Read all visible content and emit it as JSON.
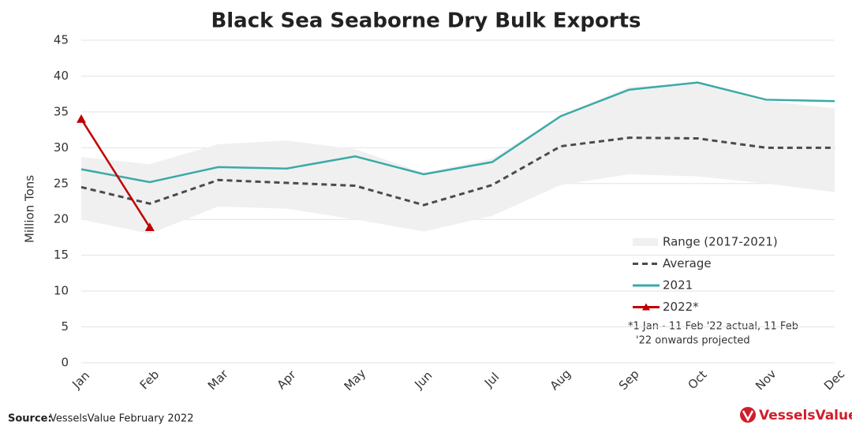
{
  "chart_data": {
    "type": "line",
    "title": "Black Sea Seaborne Dry Bulk Exports",
    "y_label": "Million Tons",
    "categories": [
      "Jan",
      "Feb",
      "Mar",
      "Apr",
      "May",
      "Jun",
      "Jul",
      "Aug",
      "Sep",
      "Oct",
      "Nov",
      "Dec"
    ],
    "range": {
      "name": "Range (2017-2021)",
      "color": "#f0f0f0",
      "low": [
        20,
        18,
        21.8,
        21.5,
        20,
        18.3,
        20.5,
        24.8,
        26.3,
        26,
        25,
        23.8
      ],
      "high": [
        28.7,
        27.7,
        30.5,
        31,
        29.8,
        26.5,
        28.5,
        34.5,
        38.5,
        39,
        36.5,
        35.5
      ]
    },
    "series": [
      {
        "name": "Average",
        "color": "#4a4a52",
        "dash": true,
        "values": [
          24.5,
          22.2,
          25.5,
          25.1,
          24.7,
          22,
          24.8,
          30.2,
          31.4,
          31.3,
          30,
          30
        ]
      },
      {
        "name": "2021",
        "color": "#3aaaa8",
        "values": [
          27,
          25.2,
          27.3,
          27.1,
          28.8,
          26.3,
          28,
          34.4,
          38.1,
          39.1,
          36.7,
          36.5
        ]
      },
      {
        "name": "2022*",
        "color": "#c00000",
        "marker": "triangle",
        "values": [
          34,
          18.9,
          null,
          null,
          null,
          null,
          null,
          null,
          null,
          null,
          null,
          null
        ]
      }
    ],
    "ylim": [
      0,
      45
    ],
    "yticks": [
      0,
      5,
      10,
      15,
      20,
      25,
      30,
      35,
      40,
      45
    ],
    "grid": true,
    "legend": "lower right",
    "footnote": [
      "*1 Jan - 11 Feb '22 actual, 11 Feb",
      "'22 onwards projected"
    ],
    "source_label": "Source:",
    "source": "VesselsValue February 2022",
    "logo": "VesselsValue"
  }
}
